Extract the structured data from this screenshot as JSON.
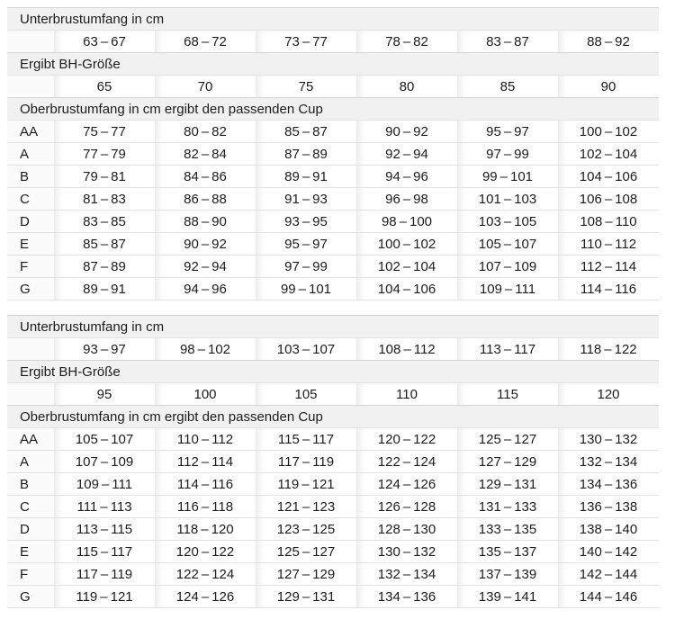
{
  "table": {
    "colors": {
      "band_bg": "#f1f1f1",
      "band_border": "#d4d4d4",
      "row_border": "#e2e2e2",
      "text": "#1c1c1c"
    },
    "sections": [
      {
        "underbust_label": "Unterbrustumfang in cm",
        "underbust_ranges": [
          "63 – 67",
          "68 – 72",
          "73 – 77",
          "78 – 82",
          "83 – 87",
          "88 – 92"
        ],
        "size_label": "Ergibt BH-Größe",
        "sizes": [
          "65",
          "70",
          "75",
          "80",
          "85",
          "90"
        ],
        "cup_label": "Oberbrustumfang in cm ergibt den passenden Cup",
        "cup_rows": [
          {
            "cup": "AA",
            "values": [
              "75 – 77",
              "80 – 82",
              "85 – 87",
              "90 – 92",
              "95 – 97",
              "100 – 102"
            ]
          },
          {
            "cup": "A",
            "values": [
              "77 – 79",
              "82 – 84",
              "87 – 89",
              "92 – 94",
              "97 – 99",
              "102 – 104"
            ]
          },
          {
            "cup": "B",
            "values": [
              "79 – 81",
              "84 – 86",
              "89 – 91",
              "94 – 96",
              "99 – 101",
              "104 – 106"
            ]
          },
          {
            "cup": "C",
            "values": [
              "81 – 83",
              "86 – 88",
              "91 – 93",
              "96 – 98",
              "101 – 103",
              "106 – 108"
            ]
          },
          {
            "cup": "D",
            "values": [
              "83 – 85",
              "88 – 90",
              "93 – 95",
              "98 – 100",
              "103 – 105",
              "108 – 110"
            ]
          },
          {
            "cup": "E",
            "values": [
              "85 – 87",
              "90 – 92",
              "95 – 97",
              "100 – 102",
              "105 – 107",
              "110 – 112"
            ]
          },
          {
            "cup": "F",
            "values": [
              "87 – 89",
              "92 – 94",
              "97 – 99",
              "102 – 104",
              "107 – 109",
              "112 – 114"
            ]
          },
          {
            "cup": "G",
            "values": [
              "89 – 91",
              "94 – 96",
              "99 – 101",
              "104 – 106",
              "109 – 111",
              "114 – 116"
            ]
          }
        ]
      },
      {
        "underbust_label": "Unterbrustumfang in cm",
        "underbust_ranges": [
          "93 – 97",
          "98 – 102",
          "103 – 107",
          "108 – 112",
          "113 – 117",
          "118 – 122"
        ],
        "size_label": "Ergibt BH-Größe",
        "sizes": [
          "95",
          "100",
          "105",
          "110",
          "115",
          "120"
        ],
        "cup_label": "Oberbrustumfang in cm ergibt den passenden Cup",
        "cup_rows": [
          {
            "cup": "AA",
            "values": [
              "105 – 107",
              "110 – 112",
              "115 – 117",
              "120 – 122",
              "125 – 127",
              "130 – 132"
            ]
          },
          {
            "cup": "A",
            "values": [
              "107 – 109",
              "112 – 114",
              "117 – 119",
              "122 – 124",
              "127 – 129",
              "132 – 134"
            ]
          },
          {
            "cup": "B",
            "values": [
              "109 – 111",
              "114 – 116",
              "119 – 121",
              "124 – 126",
              "129 – 131",
              "134 – 136"
            ]
          },
          {
            "cup": "C",
            "values": [
              "111 – 113",
              "116 – 118",
              "121 – 123",
              "126 – 128",
              "131 – 133",
              "136 – 138"
            ]
          },
          {
            "cup": "D",
            "values": [
              "113 – 115",
              "118 – 120",
              "123 – 125",
              "128 – 130",
              "133 – 135",
              "138 – 140"
            ]
          },
          {
            "cup": "E",
            "values": [
              "115 – 117",
              "120 – 122",
              "125 – 127",
              "130 – 132",
              "135 – 137",
              "140 – 142"
            ]
          },
          {
            "cup": "F",
            "values": [
              "117 – 119",
              "122 – 124",
              "127 – 129",
              "132 – 134",
              "137 – 139",
              "142 – 144"
            ]
          },
          {
            "cup": "G",
            "values": [
              "119 – 121",
              "124 – 126",
              "129 – 131",
              "134 – 136",
              "139 – 141",
              "144 – 146"
            ]
          }
        ]
      }
    ]
  }
}
